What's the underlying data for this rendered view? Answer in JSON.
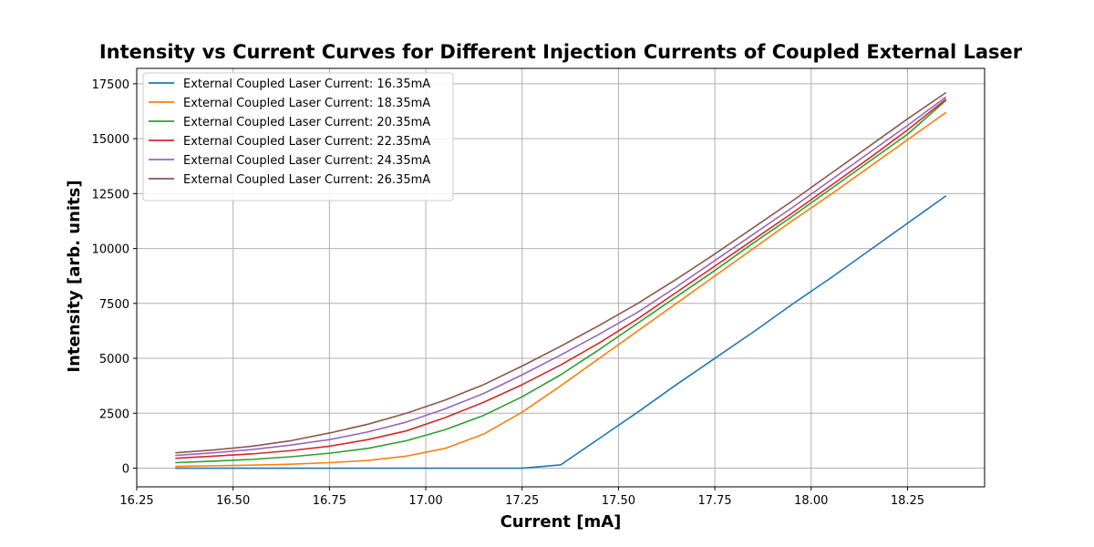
{
  "chart_data": {
    "type": "line",
    "title": "Intensity vs Current Curves for Different Injection Currents of Coupled External Laser",
    "xlabel": "Current [mA]",
    "ylabel": "Intensity [arb. units]",
    "xlim": [
      16.25,
      18.45
    ],
    "ylim": [
      -850,
      18200
    ],
    "xticks": [
      16.25,
      16.5,
      16.75,
      17.0,
      17.25,
      17.5,
      17.75,
      18.0,
      18.25
    ],
    "xtick_labels": [
      "16.25",
      "16.50",
      "16.75",
      "17.00",
      "17.25",
      "17.50",
      "17.75",
      "18.00",
      "18.25"
    ],
    "yticks": [
      0,
      2500,
      5000,
      7500,
      10000,
      12500,
      15000,
      17500
    ],
    "ytick_labels": [
      "0",
      "2500",
      "5000",
      "7500",
      "10000",
      "12500",
      "15000",
      "17500"
    ],
    "grid": true,
    "legend_position": "top-left",
    "x": [
      16.35,
      16.45,
      16.55,
      16.65,
      16.75,
      16.85,
      16.95,
      17.05,
      17.15,
      17.25,
      17.35,
      17.45,
      17.55,
      17.65,
      17.75,
      17.85,
      17.95,
      18.05,
      18.15,
      18.25,
      18.35
    ],
    "series": [
      {
        "name": "External Coupled Laser Current: 16.35mA",
        "color": "#1f77b4",
        "values": [
          0,
          0,
          0,
          0,
          0,
          0,
          0,
          0,
          0,
          0,
          150,
          1350,
          2550,
          3800,
          5000,
          6200,
          7450,
          8650,
          9900,
          11150,
          12400
        ]
      },
      {
        "name": "External Coupled Laser Current: 18.35mA",
        "color": "#ff7f0e",
        "values": [
          80,
          110,
          140,
          180,
          250,
          350,
          550,
          900,
          1550,
          2550,
          3750,
          5000,
          6250,
          7500,
          8750,
          10000,
          11250,
          12450,
          13700,
          14950,
          16200
        ]
      },
      {
        "name": "External Coupled Laser Current: 20.35mA",
        "color": "#2ca02c",
        "values": [
          250,
          320,
          400,
          520,
          680,
          900,
          1250,
          1750,
          2400,
          3250,
          4250,
          5400,
          6600,
          7800,
          9000,
          10250,
          11450,
          12700,
          13950,
          15200,
          16750
        ]
      },
      {
        "name": "External Coupled Laser Current: 22.35mA",
        "color": "#d62728",
        "values": [
          450,
          550,
          650,
          800,
          1000,
          1300,
          1700,
          2300,
          3000,
          3800,
          4700,
          5700,
          6800,
          8000,
          9200,
          10400,
          11600,
          12850,
          14100,
          15400,
          16800
        ]
      },
      {
        "name": "External Coupled Laser Current: 24.35mA",
        "color": "#9467bd",
        "values": [
          580,
          700,
          850,
          1050,
          1300,
          1650,
          2100,
          2700,
          3400,
          4250,
          5150,
          6100,
          7100,
          8250,
          9450,
          10650,
          11850,
          13100,
          14350,
          15600,
          16900
        ]
      },
      {
        "name": "External Coupled Laser Current: 26.35mA",
        "color": "#8c564b",
        "values": [
          700,
          830,
          1000,
          1250,
          1600,
          2000,
          2500,
          3100,
          3800,
          4650,
          5550,
          6500,
          7500,
          8600,
          9750,
          10950,
          12150,
          13400,
          14650,
          15900,
          17100
        ]
      }
    ]
  }
}
